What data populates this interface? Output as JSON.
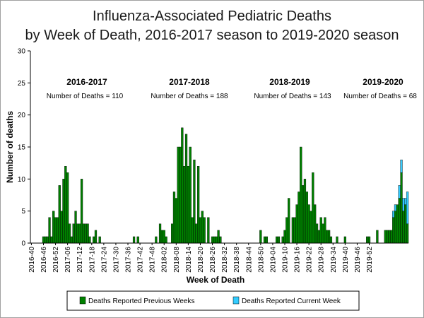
{
  "chart_data": {
    "type": "bar",
    "title": [
      "Influenza-Associated Pediatric Deaths",
      "by Week of Death, 2016-2017 season to 2019-2020 season"
    ],
    "xlabel": "Week of Death",
    "ylabel": "Number of deaths",
    "ylim": [
      0,
      30
    ],
    "yticks": [
      0,
      5,
      10,
      15,
      20,
      25,
      30
    ],
    "stacked": true,
    "colors": {
      "previous": "#008000",
      "current": "#33ccff",
      "axis": "#000000",
      "title": "#1a1a1a"
    },
    "x_tick_labels": [
      "2016-40",
      "2016-46",
      "2016-52",
      "2017-06",
      "2017-12",
      "2017-18",
      "2017-24",
      "2017-30",
      "2017-36",
      "2017-42",
      "2017-48",
      "2018-02",
      "2018-08",
      "2018-14",
      "2018-20",
      "2018-26",
      "2018-32",
      "2018-38",
      "2018-44",
      "2018-50",
      "2019-04",
      "2019-10",
      "2019-16",
      "2019-22",
      "2019-28",
      "2019-34",
      "2019-40",
      "2019-46",
      "2019-52"
    ],
    "seasons": [
      {
        "label": "2016-2017",
        "deaths_text": "Number of Deaths = 110"
      },
      {
        "label": "2017-2018",
        "deaths_text": "Number of Deaths = 188"
      },
      {
        "label": "2018-2019",
        "deaths_text": "Number of Deaths = 143"
      },
      {
        "label": "2019-2020",
        "deaths_text": "Number of Deaths = 68"
      }
    ],
    "series": [
      {
        "name": "Deaths Reported Previous Weeks",
        "values": [
          0,
          0,
          0,
          0,
          0,
          0,
          1,
          1,
          1,
          4,
          1,
          5,
          4,
          4,
          9,
          5,
          10,
          12,
          11,
          3,
          1,
          3,
          5,
          3,
          3,
          10,
          3,
          3,
          3,
          1,
          0,
          1,
          2,
          0,
          1,
          0,
          0,
          0,
          0,
          0,
          0,
          0,
          0,
          0,
          0,
          0,
          0,
          0,
          0,
          0,
          0,
          1,
          0,
          1,
          0,
          0,
          0,
          0,
          0,
          0,
          0,
          0,
          1,
          0,
          3,
          2,
          2,
          1,
          0,
          0,
          3,
          8,
          7,
          15,
          15,
          18,
          12,
          17,
          12,
          15,
          4,
          13,
          3,
          12,
          4,
          5,
          4,
          0,
          4,
          0,
          1,
          1,
          1,
          2,
          1,
          0,
          0,
          0,
          0,
          0,
          0,
          0,
          0,
          0,
          0,
          0,
          0,
          0,
          0,
          0,
          0,
          0,
          0,
          0,
          2,
          0,
          1,
          1,
          0,
          0,
          0,
          0,
          1,
          1,
          0,
          1,
          2,
          4,
          7,
          0,
          4,
          4,
          6,
          8,
          15,
          9,
          10,
          8,
          6,
          5,
          11,
          6,
          3,
          2,
          4,
          3,
          4,
          2,
          2,
          1,
          0,
          0,
          1,
          0,
          0,
          0,
          1,
          0,
          0,
          0,
          0,
          0,
          0,
          0,
          0,
          0,
          0,
          1,
          1,
          0,
          0,
          0,
          2,
          0,
          0,
          0,
          2,
          2,
          2,
          2,
          4,
          5,
          6,
          7,
          11,
          5,
          6,
          3
        ]
      },
      {
        "name": "Deaths Reported Current Week",
        "values": [
          0,
          0,
          0,
          0,
          0,
          0,
          0,
          0,
          0,
          0,
          0,
          0,
          0,
          0,
          0,
          0,
          0,
          0,
          0,
          0,
          0,
          0,
          0,
          0,
          0,
          0,
          0,
          0,
          0,
          0,
          0,
          0,
          0,
          0,
          0,
          0,
          0,
          0,
          0,
          0,
          0,
          0,
          0,
          0,
          0,
          0,
          0,
          0,
          0,
          0,
          0,
          0,
          0,
          0,
          0,
          0,
          0,
          0,
          0,
          0,
          0,
          0,
          0,
          0,
          0,
          0,
          0,
          0,
          0,
          0,
          0,
          0,
          0,
          0,
          0,
          0,
          0,
          0,
          0,
          0,
          0,
          0,
          0,
          0,
          0,
          0,
          0,
          0,
          0,
          0,
          0,
          0,
          0,
          0,
          0,
          0,
          0,
          0,
          0,
          0,
          0,
          0,
          0,
          0,
          0,
          0,
          0,
          0,
          0,
          0,
          0,
          0,
          0,
          0,
          0,
          0,
          0,
          0,
          0,
          0,
          0,
          0,
          0,
          0,
          0,
          0,
          0,
          0,
          0,
          0,
          0,
          0,
          0,
          0,
          0,
          0,
          0,
          0,
          0,
          0,
          0,
          0,
          0,
          0,
          0,
          0,
          0,
          0,
          0,
          0,
          0,
          0,
          0,
          0,
          0,
          0,
          0,
          0,
          0,
          0,
          0,
          0,
          0,
          0,
          0,
          0,
          0,
          0,
          0,
          0,
          0,
          0,
          0,
          0,
          0,
          0,
          0,
          0,
          0,
          0,
          1,
          1,
          0,
          2,
          2,
          2,
          1,
          5
        ]
      }
    ],
    "legend": {
      "placement": "bottom",
      "items": [
        {
          "label": "Deaths Reported Previous Weeks",
          "color": "#008000"
        },
        {
          "label": "Deaths Reported Current Week",
          "color": "#33ccff"
        }
      ]
    }
  }
}
